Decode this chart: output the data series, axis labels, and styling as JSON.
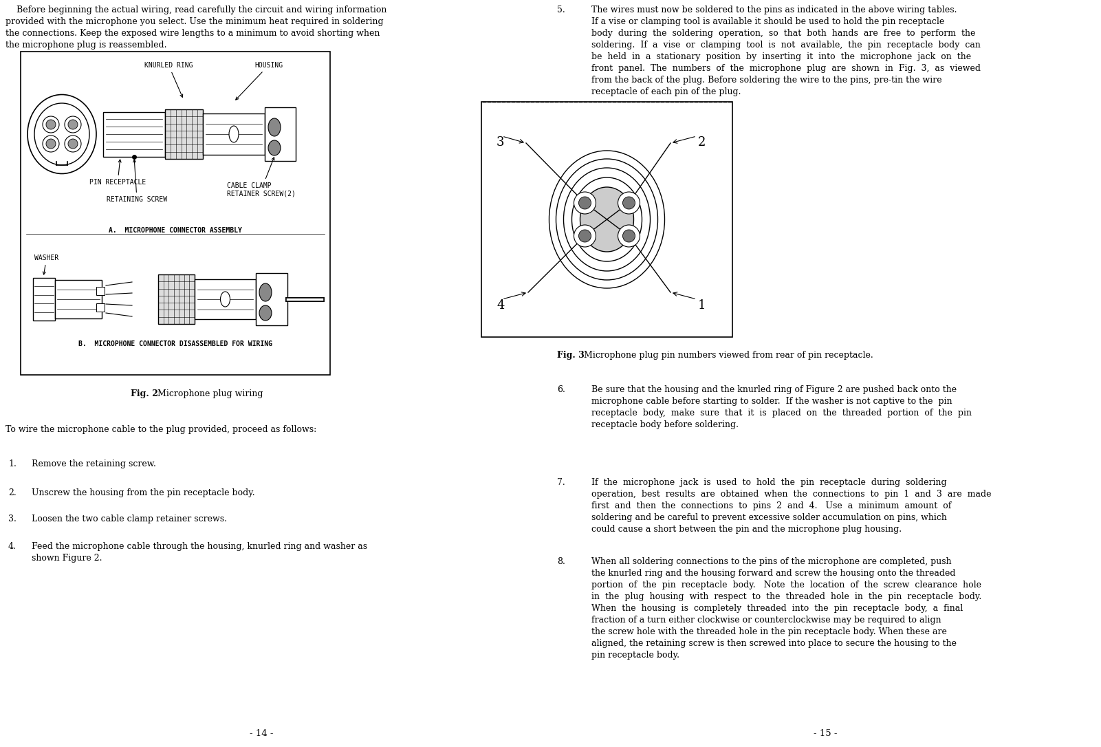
{
  "bg_color": "#ffffff",
  "left_header_text": "    Before beginning the actual wiring, read carefully the circuit and wiring information\nprovided with the microphone you select. Use the minimum heat required in soldering\nthe connections. Keep the exposed wire lengths to a minimum to avoid shorting when\nthe microphone plug is reassembled.",
  "fig2_caption_bold": "Fig. 2",
  "fig2_caption_rest": " Microphone plug wiring",
  "fig3_caption_bold": "Fig. 3",
  "fig3_caption_rest": " Microphone plug pin numbers viewed from rear of pin receptacle.",
  "to_wire_text": "To wire the microphone cable to the plug provided, proceed as follows:",
  "item1": "Remove the retaining screw.",
  "item2": "Unscrew the housing from the pin receptacle body.",
  "item3": "Loosen the two cable clamp retainer screws.",
  "item4a": "Feed the microphone cable through the housing, knurled ring and washer as",
  "item4b": "shown Figure 2.",
  "item5": "The wires must now be soldered to the pins as indicated in the above wiring tables.\nIf a vise or clamping tool is available it should be used to hold the pin receptacle\nbody  during  the  soldering  operation,  so  that  both  hands  are  free  to  perform  the\nsoldering.  If  a  vise  or  clamping  tool  is  not  available,  the  pin  receptacle  body  can\nbe  held  in  a  stationary  position  by  inserting  it  into  the  microphone  jack  on  the\nfront  panel.  The  numbers  of  the  microphone  plug  are  shown  in  Fig.  3,  as  viewed\nfrom the back of the plug. Before soldering the wire to the pins, pre-tin the wire\nreceptacle of each pin of the plug.",
  "item6": "Be sure that the housing and the knurled ring of Figure 2 are pushed back onto the\nmicrophone cable before starting to solder.  If the washer is not captive to the  pin\nreceptacle  body,  make  sure  that  it  is  placed  on  the  threaded  portion  of  the  pin\nreceptacle body before soldering.",
  "item7": "If  the  microphone  jack  is  used  to  hold  the  pin  receptacle  during  soldering\noperation,  best  results  are  obtained  when  the  connections  to  pin  1  and  3  are  made\nfirst  and  then  the  connections  to  pins  2  and  4.   Use  a  minimum  amount  of\nsoldering and be careful to prevent excessive solder accumulation on pins, which\ncould cause a short between the pin and the microphone plug housing.",
  "item8": "When all soldering connections to the pins of the microphone are completed, push\nthe knurled ring and the housing forward and screw the housing onto the threaded\nportion  of  the  pin  receptacle  body.   Note  the  location  of  the  screw  clearance  hole\nin  the  plug  housing  with  respect  to  the  threaded  hole  in  the  pin  receptacle  body.\nWhen  the  housing  is  completely  threaded  into  the  pin  receptacle  body,  a  final\nfraction of a turn either clockwise or counterclockwise may be required to align\nthe screw hole with the threaded hole in the pin receptacle body. When these are\naligned, the retaining screw is then screwed into place to secure the housing to the\npin receptacle body.",
  "page_num_left": "- 14 -",
  "page_num_right": "- 15 -"
}
